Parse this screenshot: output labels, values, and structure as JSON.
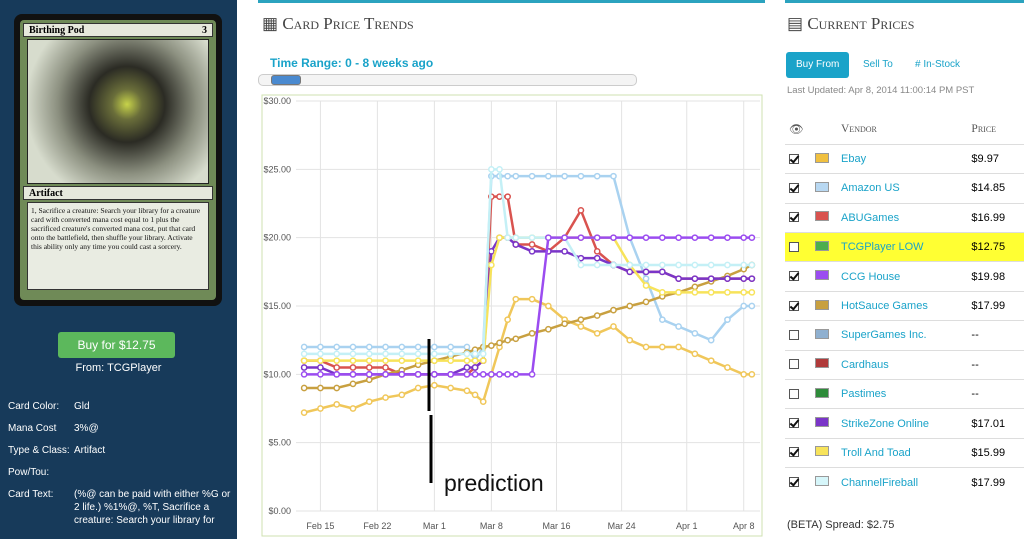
{
  "card_panel": {
    "card_name": "Birthing Pod",
    "mana": "3",
    "type_line": "Artifact",
    "rules_text": "1, Sacrifice a creature: Search your library for a creature card with converted mana cost equal to 1 plus the sacrificed creature's converted mana cost, put that card onto the battlefield, then shuffle your library. Activate this ability only any time you could cast a sorcery.",
    "buy_button": "Buy for $12.75",
    "from": "From: TCGPlayer",
    "details": [
      {
        "label": "Card Color:",
        "value": "Gld"
      },
      {
        "label": "Mana Cost",
        "value": "3%@"
      },
      {
        "label": "Type & Class:",
        "value": "Artifact"
      },
      {
        "label": "Pow/Tou:"
      },
      {
        "label": "Card Text:",
        "value": "(%@ can be paid with either %G or 2 life.) %1%@, %T, Sacrifice a creature: Search your library for"
      }
    ]
  },
  "trends": {
    "heading": "Card Price Trends",
    "time_range": "Time Range: 0 - 8 weeks ago",
    "annotation": "prediction"
  },
  "chart_data": {
    "type": "line",
    "x": [
      -2,
      0,
      2,
      4,
      6,
      8,
      10,
      12,
      14,
      16,
      18,
      19,
      20,
      21,
      22,
      23,
      24,
      26,
      28,
      30,
      32,
      34,
      36,
      38,
      40,
      42,
      44,
      46,
      48,
      50,
      52,
      53
    ],
    "xlim": [
      -3,
      54
    ],
    "xticks": [
      {
        "value": 0,
        "label": "Feb 15"
      },
      {
        "value": 7,
        "label": "Feb 22"
      },
      {
        "value": 14,
        "label": "Mar 1"
      },
      {
        "value": 21,
        "label": "Mar 8"
      },
      {
        "value": 29,
        "label": "Mar 16"
      },
      {
        "value": 37,
        "label": "Mar 24"
      },
      {
        "value": 45,
        "label": "Apr 1"
      },
      {
        "value": 52,
        "label": "Apr 8"
      }
    ],
    "ylim": [
      0,
      30
    ],
    "yticks": [
      {
        "value": 0,
        "label": "$0.00"
      },
      {
        "value": 5,
        "label": "$5.00"
      },
      {
        "value": 10,
        "label": "$10.00"
      },
      {
        "value": 15,
        "label": "$15.00"
      },
      {
        "value": 20,
        "label": "$20.00"
      },
      {
        "value": 25,
        "label": "$25.00"
      },
      {
        "value": 30,
        "label": "$30.00"
      }
    ],
    "grid": true,
    "series": [
      {
        "color": "#f0c75a",
        "values": [
          7.2,
          7.5,
          7.8,
          7.5,
          8,
          8.3,
          8.5,
          9,
          9.2,
          9,
          8.8,
          8.5,
          8,
          10,
          12,
          14,
          15.5,
          15.5,
          15,
          14,
          13.5,
          13,
          13.5,
          12.5,
          12,
          12,
          12,
          11.5,
          11,
          10.5,
          10,
          10
        ]
      },
      {
        "color": "#a9d2f0",
        "values": [
          12,
          12,
          12,
          12,
          12,
          12,
          12,
          12,
          12,
          12,
          12,
          11,
          12,
          24.5,
          24.5,
          24.5,
          24.5,
          24.5,
          24.5,
          24.5,
          24.5,
          24.5,
          24.5,
          20,
          17,
          14,
          13.5,
          13,
          12.5,
          14,
          15,
          15
        ]
      },
      {
        "color": "#d9534f",
        "values": [
          11,
          11,
          10.5,
          10.5,
          10.5,
          10.5,
          10,
          10,
          10,
          10,
          10,
          10.5,
          11,
          23,
          23,
          23,
          19.5,
          19.5,
          19,
          20,
          22,
          19,
          18,
          17.5,
          17.5,
          17.5,
          17,
          17,
          17,
          17,
          17,
          17
        ]
      },
      {
        "color": "#c8a040",
        "values": [
          9,
          9,
          9,
          9.3,
          9.6,
          10,
          10.3,
          10.7,
          11,
          11.3,
          11.6,
          11.8,
          12,
          12.1,
          12.3,
          12.5,
          12.6,
          13,
          13.3,
          13.7,
          14,
          14.3,
          14.7,
          15,
          15.3,
          15.7,
          16,
          16.4,
          16.8,
          17.2,
          17.7,
          18
        ]
      },
      {
        "color": "#7a35c8",
        "values": [
          10.5,
          10.5,
          10,
          10,
          10,
          10,
          10,
          10,
          10,
          10,
          10.5,
          10.5,
          11,
          19,
          20,
          20,
          19.5,
          19,
          19,
          19,
          18.5,
          18.5,
          18,
          17.5,
          17.5,
          17.5,
          17,
          17,
          17,
          17,
          17,
          17
        ]
      },
      {
        "color": "#f7e35a",
        "values": [
          11,
          11,
          11,
          11,
          11,
          11,
          11,
          11,
          11,
          11,
          11,
          11,
          11,
          18,
          20,
          20,
          20,
          20,
          20,
          20,
          20,
          20,
          20,
          18,
          16.5,
          16,
          16,
          16,
          16,
          16,
          16,
          16
        ]
      },
      {
        "color": "#c4f0f6",
        "values": [
          11.5,
          11.5,
          11.5,
          11.5,
          11.5,
          11.5,
          11.5,
          11.5,
          11.5,
          11.5,
          11.5,
          11.5,
          11.5,
          25,
          25,
          20,
          20,
          20,
          20,
          20,
          18,
          18,
          18,
          18,
          18,
          18,
          18,
          18,
          18,
          18,
          18,
          18
        ]
      },
      {
        "color": "#9b4cf0",
        "values": [
          10,
          10,
          10,
          10,
          10,
          10,
          10,
          10,
          10,
          10,
          10,
          10,
          10,
          10,
          10,
          10,
          10,
          10,
          20,
          20,
          20,
          20,
          20,
          20,
          20,
          20,
          20,
          20,
          20,
          20,
          20,
          20
        ]
      }
    ]
  },
  "prices": {
    "heading": "Current Prices",
    "tabs": [
      "Buy From",
      "Sell To",
      "# In-Stock"
    ],
    "last_updated": "Last Updated: Apr 8, 2014 11:00:14 PM PST",
    "columns": [
      "Vendor",
      "Price"
    ],
    "rows": [
      {
        "checked": true,
        "color": "#f0c040",
        "vendor": "Ebay",
        "price": "$9.97"
      },
      {
        "checked": true,
        "color": "#b8d8f2",
        "vendor": "Amazon US",
        "price": "$14.85"
      },
      {
        "checked": true,
        "color": "#d9534f",
        "vendor": "ABUGames",
        "price": "$16.99"
      },
      {
        "checked": false,
        "highlight": true,
        "color": "#4cae4c",
        "vendor": "TCGPlayer LOW",
        "price": "$12.75"
      },
      {
        "checked": true,
        "color": "#9b4cf0",
        "vendor": "CCG House",
        "price": "$19.98"
      },
      {
        "checked": true,
        "color": "#c8a040",
        "vendor": "HotSauce Games",
        "price": "$17.99"
      },
      {
        "checked": false,
        "color": "#8fb0d0",
        "vendor": "SuperGames Inc.",
        "price": "--"
      },
      {
        "checked": false,
        "color": "#b03a3a",
        "vendor": "Cardhaus",
        "price": "--"
      },
      {
        "checked": false,
        "color": "#2e8b3a",
        "vendor": "Pastimes",
        "price": "--"
      },
      {
        "checked": true,
        "color": "#7a35c8",
        "vendor": "StrikeZone Online",
        "price": "$17.01"
      },
      {
        "checked": true,
        "color": "#f7e35a",
        "vendor": "Troll And Toad",
        "price": "$15.99"
      },
      {
        "checked": true,
        "color": "#d6f6fa",
        "vendor": "ChannelFireball",
        "price": "$17.99"
      }
    ],
    "spread": "(BETA) Spread: $2.75"
  }
}
